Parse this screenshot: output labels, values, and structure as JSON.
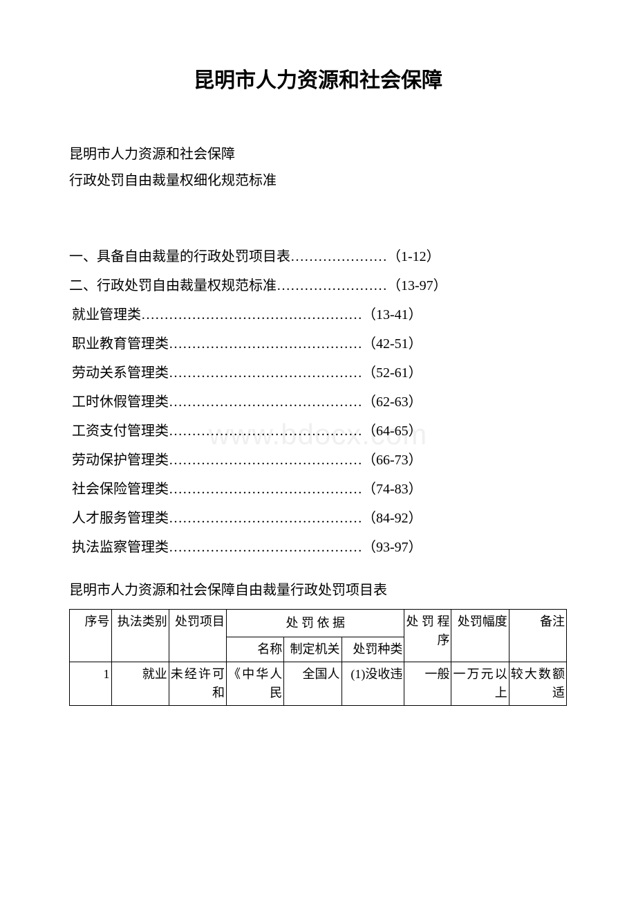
{
  "title": "昆明市人力资源和社会保障",
  "subtitle1": "昆明市人力资源和社会保障",
  "subtitle2": "行政处罚自由裁量权细化规范标准",
  "toc": [
    {
      "text": "一、具备自由裁量的行政处罚项目表…………………（1-12）",
      "indent": false
    },
    {
      "text": "二、行政处罚自由裁量权规范标准……………………（13-97）",
      "indent": false
    },
    {
      "text": " 就业管理类…………………………………………（13-41）",
      "indent": true
    },
    {
      "text": "职业教育管理类……………………………………（42-51）",
      "indent": true
    },
    {
      "text": "劳动关系管理类……………………………………（52-61）",
      "indent": true
    },
    {
      "text": "工时休假管理类……………………………………（62-63）",
      "indent": true
    },
    {
      "text": "工资支付管理类……………………………………（64-65）",
      "indent": true
    },
    {
      "text": "劳动保护管理类……………………………………（66-73）",
      "indent": true
    },
    {
      "text": "社会保险管理类……………………………………（74-83）",
      "indent": true
    },
    {
      "text": "人才服务管理类……………………………………（84-92）",
      "indent": true
    },
    {
      "text": "执法监察管理类……………………………………（93-97）",
      "indent": true
    }
  ],
  "sectionTitle": "昆明市人力资源和社会保障自由裁量行政处罚项目表",
  "watermark": "www.bdocx.com",
  "table": {
    "colWidths": [
      "8%",
      "11%",
      "11%",
      "11%",
      "11%",
      "12%",
      "9%",
      "11%",
      "11%"
    ],
    "mergedHeader": "处 罚 依 据",
    "headerRow": [
      "序号",
      "执法类别",
      "处罚项目",
      "名称",
      "制定机关",
      "处罚种类",
      "处罚程序",
      "处罚幅度",
      "备注"
    ],
    "dataRow": [
      "1",
      "就业",
      "未经许可和",
      "《中华人民",
      "全国人",
      "(1)没收违",
      "一般",
      "一万元以上",
      "较大数额适"
    ]
  },
  "colors": {
    "text": "#000000",
    "background": "#ffffff",
    "border": "#000000",
    "watermark": "#f0f0f0"
  },
  "fonts": {
    "body": "SimSun",
    "titleSize": 30,
    "bodySize": 20,
    "tableSize": 18
  }
}
